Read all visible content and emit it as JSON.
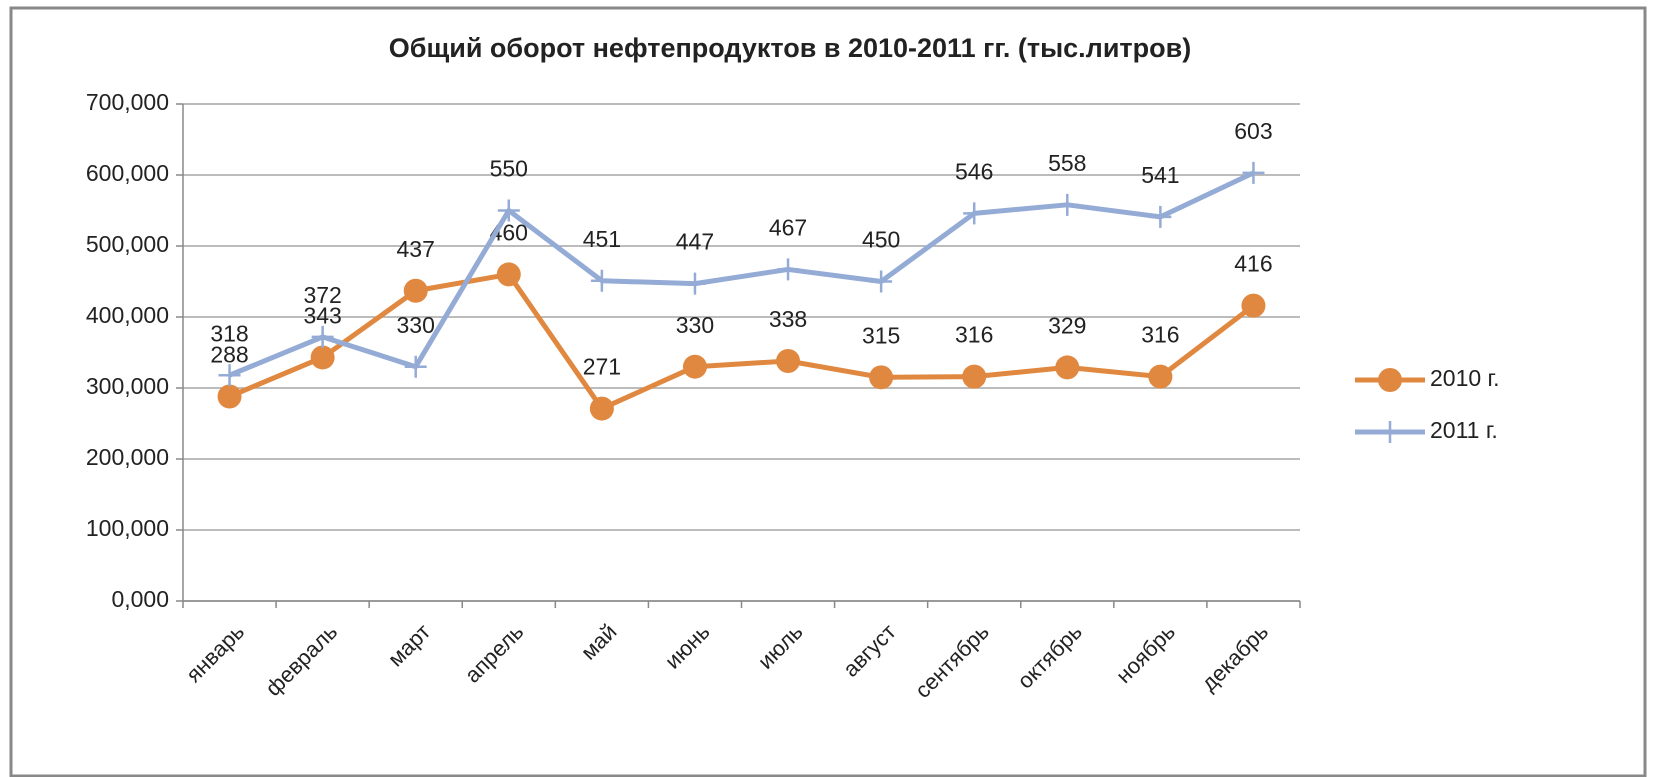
{
  "chart_data": {
    "type": "line",
    "title": "Общий оборот  нефтепродуктов в 2010-2011 гг. (тыс.литров)",
    "categories": [
      "январь",
      "февраль",
      "март",
      "апрель",
      "май",
      "июнь",
      "июль",
      "август",
      "сентябрь",
      "октябрь",
      "ноябрь",
      "декабрь"
    ],
    "series": [
      {
        "name": "2010 г.",
        "color": "#e0883f",
        "marker": "circle",
        "values": [
          288,
          343,
          437,
          460,
          271,
          330,
          338,
          315,
          316,
          329,
          316,
          416
        ]
      },
      {
        "name": "2011 г.",
        "color": "#94abd6",
        "marker": "plus",
        "values": [
          318,
          372,
          330,
          550,
          451,
          447,
          467,
          450,
          546,
          558,
          541,
          603
        ]
      }
    ],
    "ylim": [
      0,
      700
    ],
    "yticks": [
      {
        "value": 0,
        "label": "0,000"
      },
      {
        "value": 100,
        "label": "100,000"
      },
      {
        "value": 200,
        "label": "200,000"
      },
      {
        "value": 300,
        "label": "300,000"
      },
      {
        "value": 400,
        "label": "400,000"
      },
      {
        "value": 500,
        "label": "500,000"
      },
      {
        "value": 600,
        "label": "600,000"
      },
      {
        "value": 700,
        "label": "700,000"
      }
    ],
    "grid": true,
    "legend": "right"
  }
}
